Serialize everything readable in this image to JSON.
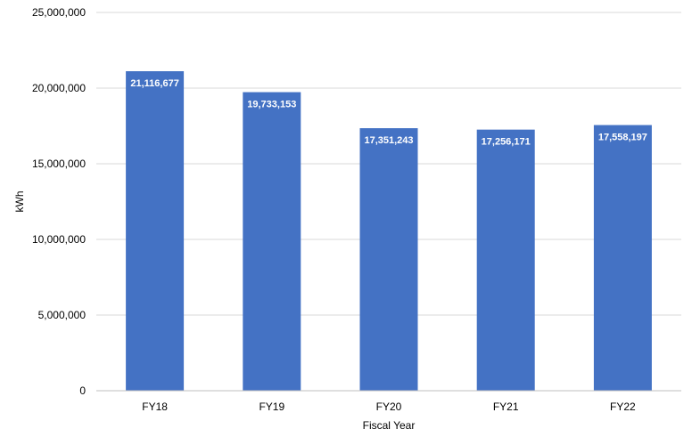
{
  "chart_data": {
    "type": "bar",
    "categories": [
      "FY18",
      "FY19",
      "FY20",
      "FY21",
      "FY22"
    ],
    "values": [
      21116677,
      19733153,
      17351243,
      17256171,
      17558197
    ],
    "data_labels": [
      "21,116,677",
      "19,733,153",
      "17,351,243",
      "17,256,171",
      "17,558,197"
    ],
    "title": "",
    "xlabel": "Fiscal Year",
    "ylabel": "kWh",
    "ylim": [
      0,
      25000000
    ],
    "yticks": [
      0,
      5000000,
      10000000,
      15000000,
      20000000,
      25000000
    ],
    "ytick_labels": [
      "0",
      "5,000,000",
      "10,000,000",
      "15,000,000",
      "20,000,000",
      "25,000,000"
    ],
    "grid": true,
    "legend": "none",
    "bar_color": "#4472c4"
  }
}
